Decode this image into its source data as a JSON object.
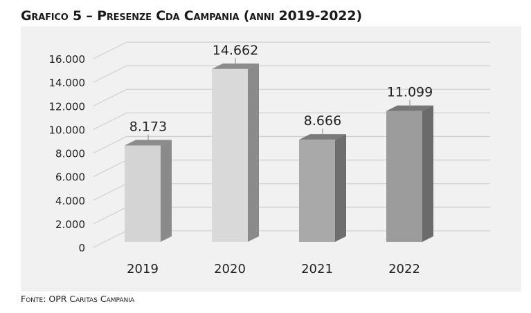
{
  "title": "Grafico 5 – Presenze Cda Campania (anni 2019-2022)",
  "source": "Fonte: OPR Caritas Campania",
  "chart_data": {
    "type": "bar",
    "title": "Grafico 5 – Presenze Cda Campania (anni 2019-2022)",
    "categories": [
      "2019",
      "2020",
      "2021",
      "2022"
    ],
    "values": [
      8173,
      14662,
      8666,
      11099
    ],
    "data_labels": [
      "8.173",
      "14.662",
      "8.666",
      "11.099"
    ],
    "y_ticks": [
      0,
      2000,
      4000,
      6000,
      8000,
      10000,
      12000,
      14000,
      16000
    ],
    "y_tick_labels": [
      "0",
      "2.000",
      "4.000",
      "6.000",
      "8.000",
      "10.000",
      "12.000",
      "14.000",
      "16.000"
    ],
    "ylim": [
      0,
      16000
    ],
    "grid": true,
    "legend": "none",
    "xlabel": "",
    "ylabel": "",
    "bar_colors": [
      "#d4d4d4",
      "#d9d9d9",
      "#a9a9a9",
      "#9c9c9c"
    ],
    "side_colors": [
      "#8a8a8a",
      "#8a8a8a",
      "#6e6e6e",
      "#6b6b6b"
    ],
    "top_colors": [
      "#8c8c8c",
      "#8c8c8c",
      "#7a7a7a",
      "#777777"
    ]
  }
}
